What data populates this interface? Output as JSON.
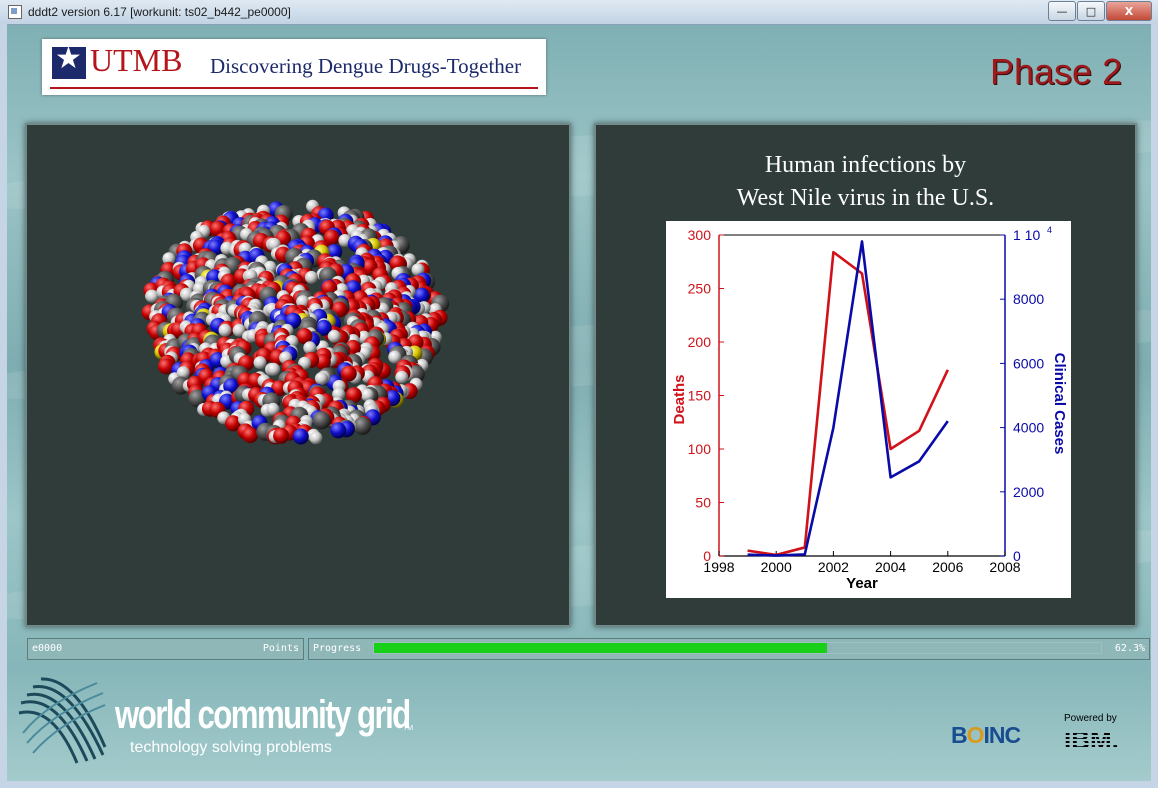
{
  "window": {
    "title": "dddt2 version 6.17 [workunit: ts02_b442_pe0000]",
    "buttons": {
      "minimize": "—",
      "maximize": "□",
      "close": "X"
    }
  },
  "banner": {
    "logo_text": "UTMB",
    "tagline": "Discovering Dengue Drugs-Together"
  },
  "phase_label": "Phase 2",
  "info_panel": {
    "title_line1": "Human infections by",
    "title_line2": "West Nile virus in the U.S."
  },
  "chart_data": {
    "type": "line",
    "title": "Human infections by West Nile virus in the U.S.",
    "xlabel": "Year",
    "ylabel_left": "Deaths",
    "ylabel_right": "Clinical Cases",
    "xlim": [
      1998,
      2008
    ],
    "x_ticks": [
      "1998",
      "2000",
      "2002",
      "2004",
      "2006",
      "2008"
    ],
    "ylim_left": [
      0,
      300
    ],
    "y_ticks_left": [
      "0",
      "50",
      "100",
      "150",
      "200",
      "250",
      "300"
    ],
    "ylim_right": [
      0,
      10000
    ],
    "y_ticks_right": [
      "0",
      "2000",
      "4000",
      "6000",
      "8000",
      "1 10"
    ],
    "right_top_exponent": "4",
    "left_color": "#d0121b",
    "right_color": "#0a0aa8",
    "series": [
      {
        "name": "Deaths",
        "axis": "left",
        "color": "#d0121b",
        "x": [
          1999,
          2000,
          2001,
          2002,
          2003,
          2004,
          2005,
          2006
        ],
        "y": [
          5,
          1,
          8,
          284,
          264,
          100,
          117,
          174
        ]
      },
      {
        "name": "Clinical Cases",
        "axis": "right",
        "color": "#0a0aa8",
        "x": [
          1999,
          2000,
          2001,
          2002,
          2003,
          2004,
          2005,
          2006
        ],
        "y": [
          40,
          15,
          50,
          4000,
          9800,
          2450,
          2950,
          4200
        ]
      }
    ]
  },
  "status": {
    "points_value": "e0000",
    "points_label": "Points",
    "progress_label": "Progress",
    "progress_percent_text": "62.3%",
    "progress_fraction": 0.623
  },
  "footer": {
    "wcg_name": "world community grid",
    "wcg_tm": "TM",
    "wcg_tagline": "technology solving problems",
    "boinc_text": "B",
    "boinc_o": "O",
    "boinc_rest": "INC",
    "powered_by": "Powered by",
    "ibm_text": "IBM."
  },
  "colors": {
    "phase_text": "#9d1a1c",
    "progress_fill": "#19cf17",
    "utmb_red": "#b3151b",
    "utmb_blue": "#1c2a6b"
  },
  "icons": [
    "app-icon",
    "utmb-star-icon",
    "wcg-logo-icon",
    "protein-molecule-render"
  ]
}
